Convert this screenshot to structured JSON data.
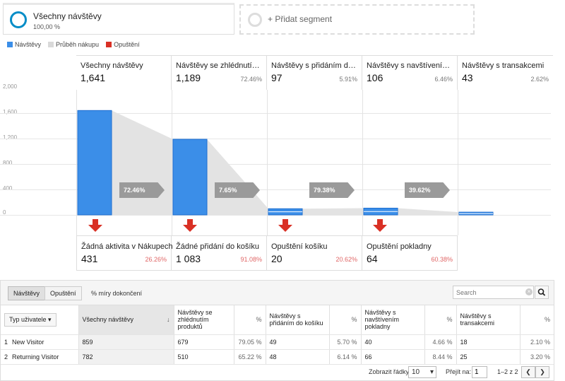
{
  "segments": {
    "active": {
      "name": "Všechny návštěvy",
      "pct": "100,00 %"
    },
    "add_label": "+ Přidat segment"
  },
  "legend": [
    {
      "label": "Návštěvy",
      "color": "#3b8ee8"
    },
    {
      "label": "Průběh nákupu",
      "color": "#d9d9d9"
    },
    {
      "label": "Opuštění",
      "color": "#d93025"
    }
  ],
  "chart_data": {
    "type": "bar",
    "title": "",
    "xlabel": "",
    "ylabel": "",
    "ylim": [
      0,
      2000
    ],
    "yticks": [
      "2,000",
      "1,600",
      "1,200",
      "800",
      "400",
      "0"
    ],
    "categories": [
      "Všechny návštěvy",
      "Návštěvy se zhlédnutím p...",
      "Návštěvy s přidáním do k...",
      "Návštěvy s navštívením p...",
      "Návštěvy s transakcemi"
    ],
    "series": [
      {
        "values": [
          1641,
          1189,
          97,
          106,
          43
        ]
      }
    ],
    "stage_values_text": [
      "1,641",
      "1,189",
      "97",
      "106",
      "43"
    ],
    "stage_pct_text": [
      "",
      "72.46%",
      "5.91%",
      "6.46%",
      "2.62%"
    ],
    "continuation_rates": [
      "72.46%",
      "7.65%",
      "79.38%",
      "39.62%"
    ],
    "dropoffs": [
      {
        "label": "Žádná aktivita v Nákupech",
        "value": "431",
        "pct": "26.26%"
      },
      {
        "label": "Žádné přidání do košíku",
        "value": "1 083",
        "pct": "91.08%"
      },
      {
        "label": "Opuštění košíku",
        "value": "20",
        "pct": "20.62%"
      },
      {
        "label": "Opuštění pokladny",
        "value": "64",
        "pct": "60.38%"
      }
    ]
  },
  "table": {
    "tabs": [
      "Návštěvy",
      "Opuštění"
    ],
    "rate_label": "% míry dokončení",
    "search_placeholder": "Search",
    "dimension_label": "Typ uživatele",
    "headers": [
      "Všechny návštěvy",
      "Návštěvy se zhlédnutím produktů",
      "%",
      "Návštěvy s přidáním do košíku",
      "%",
      "Návštěvy s navštívením pokladny",
      "%",
      "Návštěvy s transakcemi",
      "%"
    ],
    "rows": [
      {
        "idx": "1",
        "name": "New Visitor",
        "cells": [
          "859",
          "679",
          "79.05 %",
          "49",
          "5.70 %",
          "40",
          "4.66 %",
          "18",
          "2.10 %"
        ]
      },
      {
        "idx": "2",
        "name": "Returning Visitor",
        "cells": [
          "782",
          "510",
          "65.22 %",
          "48",
          "6.14 %",
          "66",
          "8.44 %",
          "25",
          "3.20 %"
        ]
      }
    ]
  },
  "footer": {
    "rows_label": "Zobrazit řádky:",
    "rows_value": "10",
    "goto_label": "Přejít na:",
    "goto_value": "1",
    "range": "1–2 z 2"
  }
}
